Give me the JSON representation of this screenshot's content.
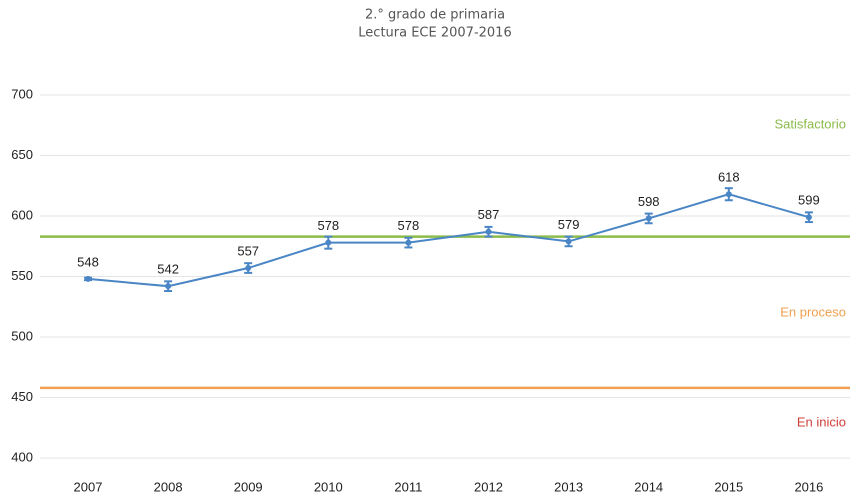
{
  "chart_data": {
    "type": "line",
    "title": "2.° grado de primaria",
    "subtitle": "Lectura ECE 2007-2016",
    "categories": [
      "2007",
      "2008",
      "2009",
      "2010",
      "2011",
      "2012",
      "2013",
      "2014",
      "2015",
      "2016"
    ],
    "series": [
      {
        "name": "Lectura",
        "color": "#4a86c5",
        "values": [
          548,
          542,
          557,
          578,
          578,
          587,
          579,
          598,
          618,
          599
        ],
        "errors": [
          1,
          4,
          4,
          5,
          4,
          4,
          4,
          4,
          5,
          4
        ]
      }
    ],
    "ylim": [
      400,
      700
    ],
    "yticks": [
      400,
      450,
      500,
      550,
      600,
      650,
      700
    ],
    "grid": true,
    "reference_lines": [
      {
        "value": 583,
        "color": "#8bbb4a"
      },
      {
        "value": 458,
        "color": "#f0a050"
      }
    ],
    "annotations": [
      {
        "text": "Satisfactorio",
        "color": "#8bbb4a"
      },
      {
        "text": "En proceso",
        "color": "#f0a050"
      },
      {
        "text": "En inicio",
        "color": "#d0403a"
      }
    ]
  }
}
